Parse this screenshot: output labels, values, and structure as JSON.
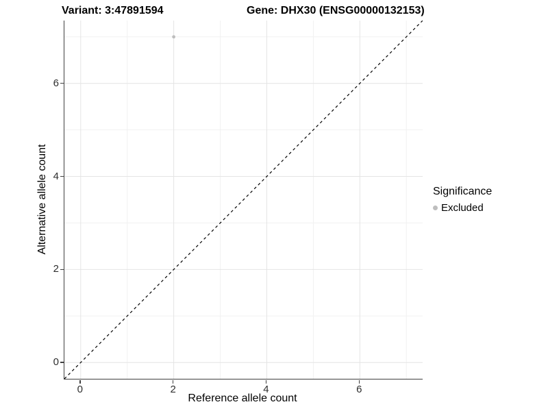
{
  "title": {
    "variant_label": "Variant: 3:47891594",
    "gene_label": "Gene: DHX30 (ENSG00000132153)"
  },
  "chart_data": {
    "type": "scatter",
    "title": "Variant: 3:47891594   Gene: DHX30 (ENSG00000132153)",
    "xlabel": "Reference allele count",
    "ylabel": "Alternative allele count",
    "xlim": [
      -0.35,
      7.35
    ],
    "ylim": [
      -0.35,
      7.35
    ],
    "x_ticks": [
      0,
      2,
      4,
      6
    ],
    "y_ticks": [
      0,
      2,
      4,
      6
    ],
    "x_minor_gridlines": [
      1,
      3,
      5,
      7
    ],
    "y_minor_gridlines": [
      1,
      3,
      5,
      7
    ],
    "grid": "major+minor",
    "series": [
      {
        "name": "Excluded",
        "color": "#bebebe",
        "points": [
          {
            "x": 2,
            "y": 7
          }
        ]
      }
    ],
    "reference_line": {
      "type": "identity",
      "slope": 1,
      "intercept": 0,
      "style": "dashed",
      "color": "#000000"
    },
    "legend": {
      "position": "right",
      "title": "Significance",
      "entries": [
        {
          "label": "Excluded",
          "color": "#bebebe"
        }
      ]
    },
    "colors": {
      "grid_major": "#e4e4e4",
      "grid_minor": "#f1f1f1",
      "axis_line": "#3f3f3f",
      "background": "#ffffff"
    }
  }
}
